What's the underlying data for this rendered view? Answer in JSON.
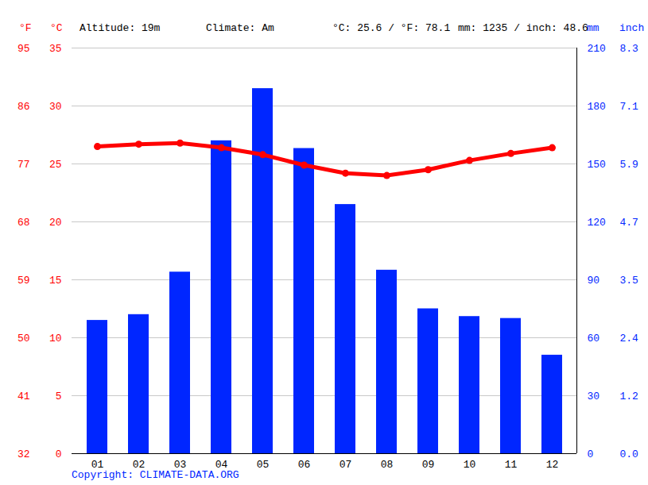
{
  "chart_data": {
    "type": "bar",
    "header": [
      "Altitude: 19m",
      "Climate: Am",
      "°C: 25.6 / °F: 78.1",
      "mm: 1235 / inch: 48.6"
    ],
    "caption": "Copyright: CLIMATE-DATA.ORG",
    "categories": [
      "01",
      "02",
      "03",
      "04",
      "05",
      "06",
      "07",
      "08",
      "09",
      "10",
      "11",
      "12"
    ],
    "series": [
      {
        "type": "bar",
        "axis": "y2",
        "color": "#0026ff",
        "values": [
          69,
          72,
          94,
          162,
          189,
          158,
          129,
          95,
          75,
          71,
          70,
          51
        ]
      },
      {
        "type": "line",
        "color": "#ff0000",
        "marker": "circle",
        "values": [
          26.5,
          26.7,
          26.8,
          26.4,
          25.8,
          24.9,
          24.2,
          24.0,
          24.5,
          25.3,
          25.9,
          26.4
        ]
      }
    ],
    "ylim": [
      0,
      35
    ],
    "yticks": [
      0,
      5,
      10,
      15,
      20,
      25,
      30,
      35
    ],
    "y_label": "°C",
    "y_alt_label": "°F",
    "y_alt_ticks": [
      {
        "value": 0,
        "label": "32"
      },
      {
        "value": 5,
        "label": "41"
      },
      {
        "value": 10,
        "label": "50"
      },
      {
        "value": 15,
        "label": "59"
      },
      {
        "value": 20,
        "label": "68"
      },
      {
        "value": 25,
        "label": "77"
      },
      {
        "value": 30,
        "label": "86"
      },
      {
        "value": 35,
        "label": "95"
      }
    ],
    "y2lim": [
      0,
      210
    ],
    "y2ticks": [
      0,
      30,
      60,
      90,
      120,
      150,
      180,
      210
    ],
    "y2_label": "mm",
    "y2_alt_label": "inch",
    "y2_alt_ticks": [
      {
        "value": 0,
        "label": "0.0"
      },
      {
        "value": 30,
        "label": "1.2"
      },
      {
        "value": 60,
        "label": "2.4"
      },
      {
        "value": 90,
        "label": "3.5"
      },
      {
        "value": 120,
        "label": "4.7"
      },
      {
        "value": 150,
        "label": "5.9"
      },
      {
        "value": 180,
        "label": "7.1"
      },
      {
        "value": 210,
        "label": "8.3"
      }
    ],
    "grid": true
  }
}
